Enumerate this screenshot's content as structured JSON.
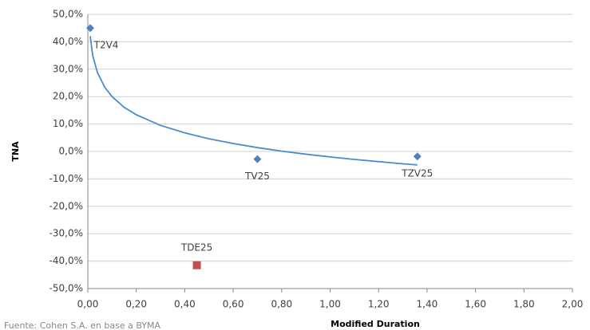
{
  "chart_data": {
    "type": "scatter",
    "xlabel": "Modified Duration",
    "ylabel": "TNA",
    "source": "Fuente: Cohen S.A. en base a BYMA",
    "xlim": [
      0,
      2
    ],
    "ylim": [
      -50,
      50
    ],
    "xticks": [
      {
        "value": 0,
        "label": "0,00"
      },
      {
        "value": 0.2,
        "label": "0,20"
      },
      {
        "value": 0.4,
        "label": "0,40"
      },
      {
        "value": 0.6,
        "label": "0,60"
      },
      {
        "value": 0.8,
        "label": "0,80"
      },
      {
        "value": 1,
        "label": "1,00"
      },
      {
        "value": 1.2,
        "label": "1,20"
      },
      {
        "value": 1.4,
        "label": "1,40"
      },
      {
        "value": 1.6,
        "label": "1,60"
      },
      {
        "value": 1.8,
        "label": "1,80"
      },
      {
        "value": 2,
        "label": "2,00"
      }
    ],
    "yticks": [
      {
        "value": -50,
        "label": "-50,0%"
      },
      {
        "value": -40,
        "label": "-40,0%"
      },
      {
        "value": -30,
        "label": "-30,0%"
      },
      {
        "value": -20,
        "label": "-20,0%"
      },
      {
        "value": -10,
        "label": "-10,0%"
      },
      {
        "value": 0,
        "label": "0,0%"
      },
      {
        "value": 10,
        "label": "10,0%"
      },
      {
        "value": 20,
        "label": "20,0%"
      },
      {
        "value": 30,
        "label": "30,0%"
      },
      {
        "value": 40,
        "label": "40,0%"
      },
      {
        "value": 50,
        "label": "50,0%"
      }
    ],
    "grid": true,
    "points": [
      {
        "label": "T2V4",
        "x": 0.01,
        "y": 45,
        "color": "#4f81bd",
        "marker": "diamond"
      },
      {
        "label": "TV25",
        "x": 0.7,
        "y": -2.8,
        "color": "#4f81bd",
        "marker": "diamond"
      },
      {
        "label": "TZV25",
        "x": 1.36,
        "y": -1.8,
        "color": "#4f81bd",
        "marker": "diamond"
      },
      {
        "label": "TDE25",
        "x": 0.45,
        "y": -41.5,
        "color": "#c0504d",
        "marker": "square"
      }
    ],
    "trendline": {
      "color": "#4a8ad0",
      "x": [
        0.01,
        0.02,
        0.04,
        0.07,
        0.1,
        0.15,
        0.2,
        0.3,
        0.4,
        0.5,
        0.6,
        0.7,
        0.8,
        0.9,
        1.0,
        1.1,
        1.2,
        1.3,
        1.36
      ],
      "values": [
        42,
        35,
        28.7,
        23.4,
        20,
        16.1,
        13.4,
        9.5,
        6.8,
        4.6,
        2.9,
        1.4,
        0.1,
        -1,
        -2,
        -2.9,
        -3.7,
        -4.5,
        -4.9
      ]
    }
  }
}
